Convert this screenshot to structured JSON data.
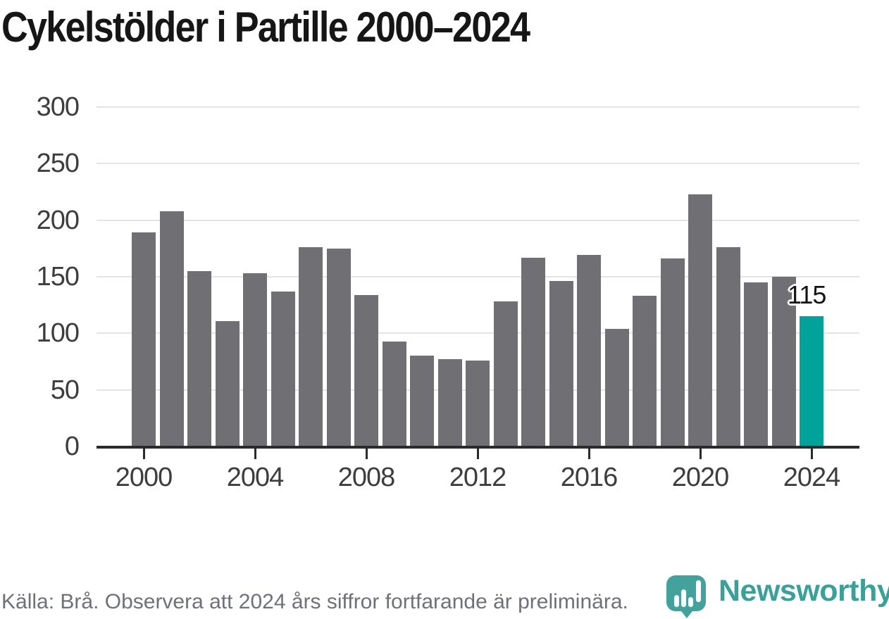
{
  "title": "Cykelstölder i Partille 2000–2024",
  "chart_data": {
    "type": "bar",
    "title": "Cykelstölder i Partille 2000–2024",
    "categories": [
      2000,
      2001,
      2002,
      2003,
      2004,
      2005,
      2006,
      2007,
      2008,
      2009,
      2010,
      2011,
      2012,
      2013,
      2014,
      2015,
      2016,
      2017,
      2018,
      2019,
      2020,
      2021,
      2022,
      2023,
      2024
    ],
    "values": [
      189,
      208,
      155,
      111,
      153,
      137,
      176,
      175,
      134,
      93,
      80,
      77,
      76,
      128,
      167,
      146,
      169,
      104,
      133,
      166,
      223,
      176,
      145,
      150,
      115
    ],
    "xlabel": "",
    "ylabel": "",
    "ylim": [
      0,
      300
    ],
    "y_ticks": [
      0,
      50,
      100,
      150,
      200,
      250,
      300
    ],
    "x_tick_labels": [
      "2000",
      "2004",
      "2008",
      "2012",
      "2016",
      "2020",
      "2024"
    ],
    "grid": true,
    "legend": "none",
    "bar_color": "#706f74",
    "highlight": {
      "year": 2024,
      "value": 115,
      "label": "115",
      "color": "#00a29a"
    }
  },
  "footer": {
    "source_note": "Källa: Brå. Observera att 2024 års siffror fortfarande är preliminära."
  },
  "logo": {
    "name": "Newsworthy",
    "icon": "newsworthy-pin-barchart-icon",
    "icon_color": "#43a29b",
    "text_color": "#3aa19a"
  }
}
